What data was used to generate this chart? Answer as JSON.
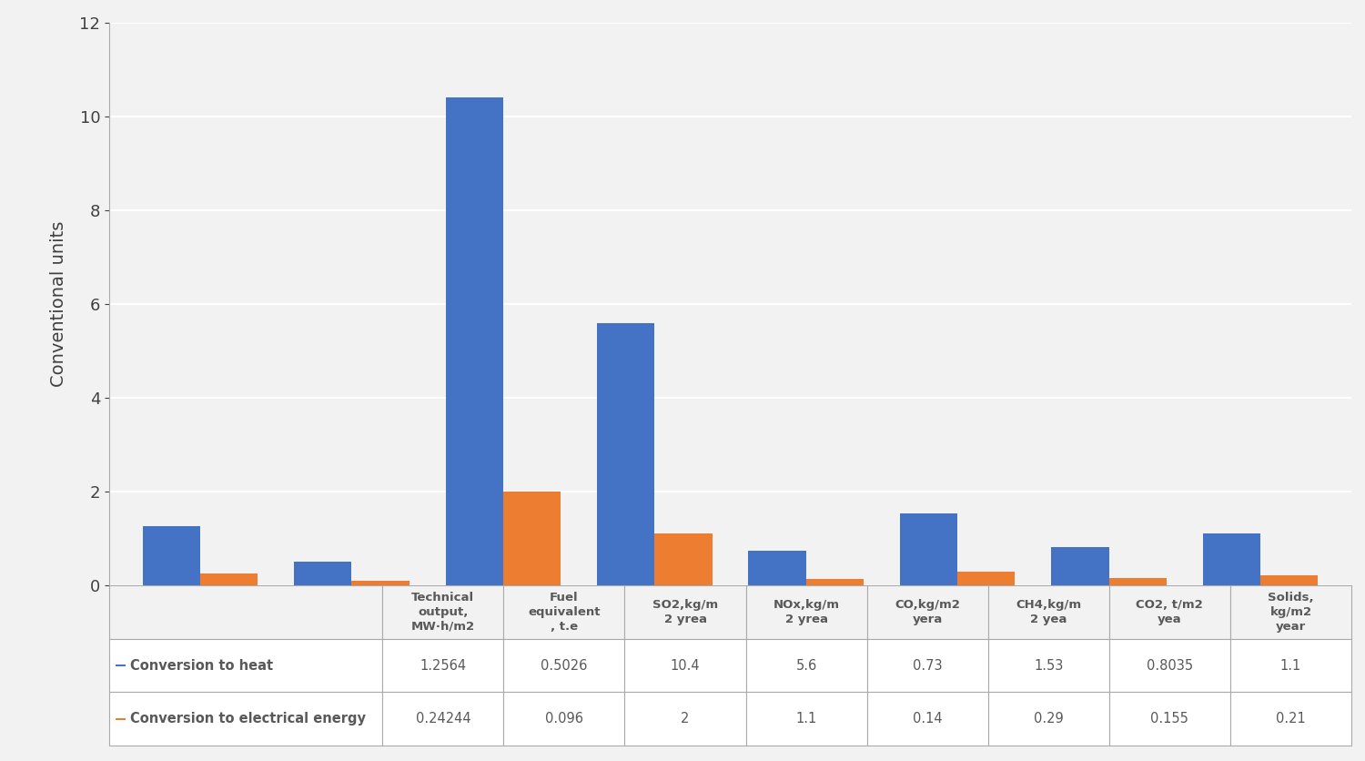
{
  "categories_display": [
    "Technical\noutput,\nMW·h/m2",
    "Fuel\nequivalent\n, t.e",
    "SO2,kg/m\n2 yrea",
    "NOx,kg/m\n2 yrea",
    "CO,kg/m2\nyera",
    "CH4,kg/m\n2 yea",
    "CO2, t/m2\nyea",
    "Solids,\nkg/m2\nyear"
  ],
  "heat_values": [
    1.2564,
    0.5026,
    10.4,
    5.6,
    0.73,
    1.53,
    0.8035,
    1.1
  ],
  "elec_values": [
    0.24244,
    0.096,
    2,
    1.1,
    0.14,
    0.29,
    0.155,
    0.21
  ],
  "heat_label": "Conversion to heat",
  "elec_label": "Conversion to electrical energy",
  "heat_color": "#4472C4",
  "elec_color": "#ED7D31",
  "ylabel": "Conventional units",
  "ylim": [
    0,
    12
  ],
  "yticks": [
    0,
    2,
    4,
    6,
    8,
    10,
    12
  ],
  "table_heat_values": [
    "1.2564",
    "0.5026",
    "10.4",
    "5.6",
    "0.73",
    "1.53",
    "0.8035",
    "1.1"
  ],
  "table_elec_values": [
    "0.24244",
    "0.096",
    "2",
    "1.1",
    "0.14",
    "0.29",
    "0.155",
    "0.21"
  ],
  "background_color": "#F2F2F2",
  "table_bg": "#FFFFFF",
  "bar_width": 0.38,
  "figsize": [
    15.0,
    8.36
  ],
  "dpi": 100,
  "grid_color": "#FFFFFF",
  "label_text_color": "#595959"
}
